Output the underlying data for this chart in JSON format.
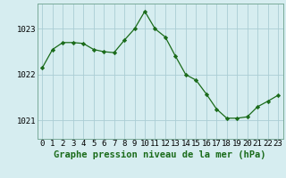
{
  "x": [
    0,
    1,
    2,
    3,
    4,
    5,
    6,
    7,
    8,
    9,
    10,
    11,
    12,
    13,
    14,
    15,
    16,
    17,
    18,
    19,
    20,
    21,
    22,
    23
  ],
  "y": [
    1022.15,
    1022.55,
    1022.7,
    1022.7,
    1022.68,
    1022.55,
    1022.5,
    1022.48,
    1022.75,
    1023.0,
    1023.38,
    1023.0,
    1022.82,
    1022.4,
    1022.0,
    1021.88,
    1021.58,
    1021.25,
    1021.05,
    1021.05,
    1021.08,
    1021.3,
    1021.42,
    1021.55
  ],
  "line_color": "#1a6b1a",
  "marker_color": "#1a6b1a",
  "bg_color": "#d6edf0",
  "grid_color": "#aacdd4",
  "xlabel": "Graphe pression niveau de la mer (hPa)",
  "xlabel_fontsize": 7.5,
  "yticks": [
    1021,
    1022,
    1023
  ],
  "xticks": [
    0,
    1,
    2,
    3,
    4,
    5,
    6,
    7,
    8,
    9,
    10,
    11,
    12,
    13,
    14,
    15,
    16,
    17,
    18,
    19,
    20,
    21,
    22,
    23
  ],
  "ylim": [
    1020.6,
    1023.55
  ],
  "xlim": [
    -0.5,
    23.5
  ],
  "tick_fontsize": 6.5,
  "label_fontweight": "bold"
}
